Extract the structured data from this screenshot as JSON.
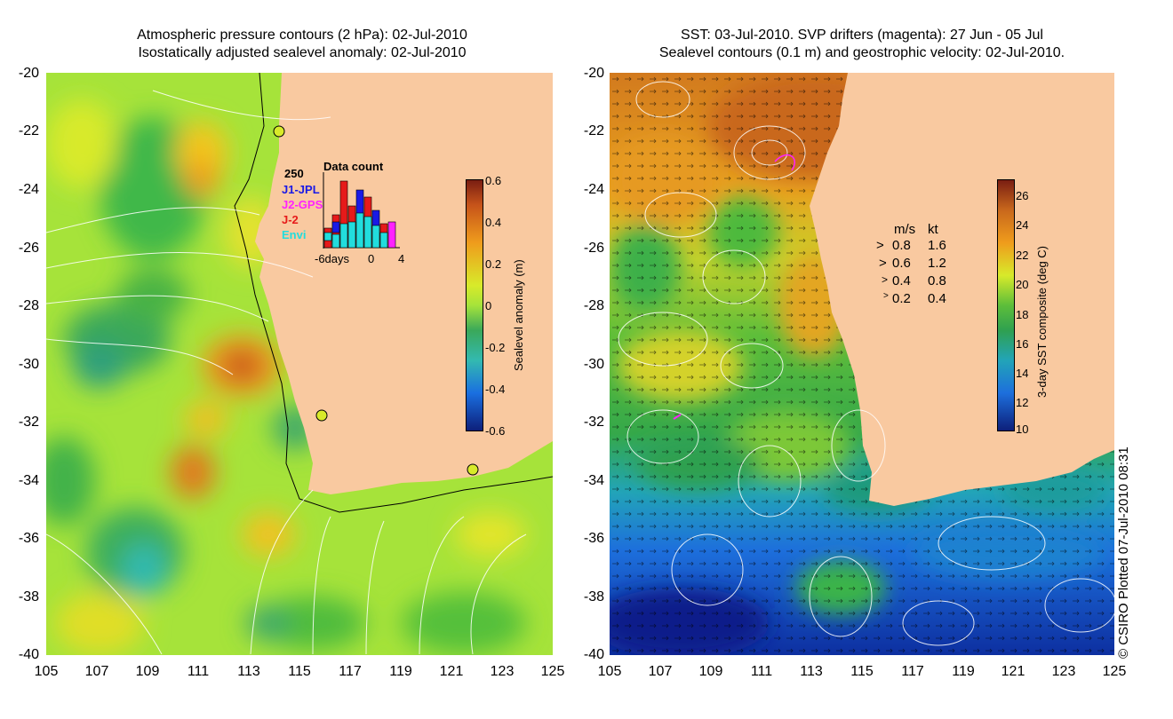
{
  "left_panel": {
    "title_line1": "Atmospheric pressure contours (2 hPa): 02-Jul-2010",
    "title_line2": "Isostatically adjusted sealevel anomaly: 02-Jul-2010",
    "colorbar": {
      "title": "Sealevel anomaly (m)",
      "labels": [
        "0.6",
        "0.4",
        "0.2",
        "0",
        "-0.2",
        "-0.4",
        "-0.6"
      ]
    },
    "inset": {
      "title": "Data count",
      "max_label": "250",
      "missions": [
        {
          "name": "J1-JPL",
          "color": "#1a1ae6"
        },
        {
          "name": "J2-GPS",
          "color": "#ff22ff"
        },
        {
          "name": "J-2",
          "color": "#e61a1a"
        },
        {
          "name": "Envi",
          "color": "#22dddd"
        }
      ],
      "axis_labels": [
        "-6days",
        "0",
        "4"
      ]
    }
  },
  "right_panel": {
    "title_line1": "SST: 03-Jul-2010. SVP drifters (magenta): 27 Jun - 05 Jul",
    "title_line2": "Sealevel contours (0.1 m) and geostrophic velocity: 02-Jul-2010.",
    "colorbar": {
      "title": "3-day SST composite (deg C)",
      "labels": [
        "26",
        "24",
        "22",
        "20",
        "18",
        "16",
        "14",
        "12",
        "10"
      ]
    },
    "speed_legend": {
      "header_ms": "m/s",
      "header_kt": "kt",
      "rows": [
        {
          "ms": "0.8",
          "kt": "1.6"
        },
        {
          "ms": "0.6",
          "kt": "1.2"
        },
        {
          "ms": "0.4",
          "kt": "0.8"
        },
        {
          "ms": "0.2",
          "kt": "0.4"
        }
      ]
    }
  },
  "axes": {
    "y_labels": [
      "-20",
      "-22",
      "-24",
      "-26",
      "-28",
      "-30",
      "-32",
      "-34",
      "-36",
      "-38",
      "-40"
    ],
    "x_labels": [
      "105",
      "107",
      "109",
      "111",
      "113",
      "115",
      "117",
      "119",
      "121",
      "123",
      "125"
    ]
  },
  "copyright": "© CSIRO Plotted 07-Jul-2010 08:31",
  "colors": {
    "land": "#f9c9a0",
    "left_ocean": "#a6e33a",
    "right_warm": "#d27a1e",
    "right_cool": "#0d2fa0"
  }
}
